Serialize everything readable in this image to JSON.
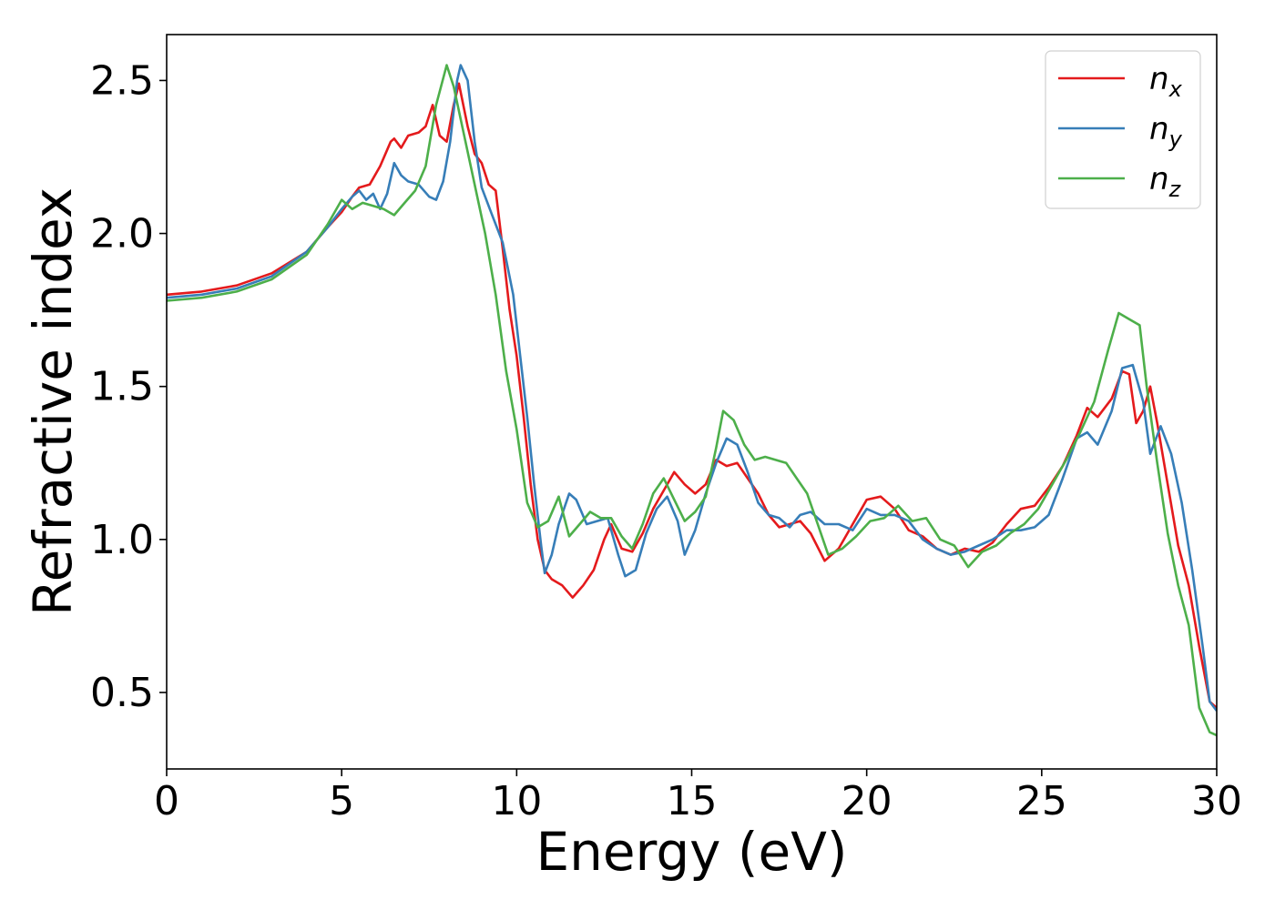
{
  "chart_data": {
    "type": "line",
    "title": "",
    "xlabel": "Energy (eV)",
    "ylabel": "Refractive index",
    "xlim": [
      0,
      30
    ],
    "ylim": [
      0.25,
      2.65
    ],
    "xticks": [
      0,
      5,
      10,
      15,
      20,
      25,
      30
    ],
    "xtick_labels": [
      "0",
      "5",
      "10",
      "15",
      "20",
      "25",
      "30"
    ],
    "yticks": [
      0.5,
      1.0,
      1.5,
      2.0,
      2.5
    ],
    "ytick_labels": [
      "0.5",
      "1.0",
      "1.5",
      "2.0",
      "2.5"
    ],
    "grid": false,
    "legend_position": "top-right",
    "series": [
      {
        "name": "n",
        "subscript": "x",
        "color": "#e41a1c",
        "points": [
          [
            0,
            1.8
          ],
          [
            1,
            1.81
          ],
          [
            2,
            1.83
          ],
          [
            3,
            1.87
          ],
          [
            4,
            1.94
          ],
          [
            4.6,
            2.02
          ],
          [
            5,
            2.07
          ],
          [
            5.3,
            2.12
          ],
          [
            5.5,
            2.15
          ],
          [
            5.8,
            2.16
          ],
          [
            6.1,
            2.22
          ],
          [
            6.4,
            2.3
          ],
          [
            6.5,
            2.31
          ],
          [
            6.7,
            2.28
          ],
          [
            6.9,
            2.32
          ],
          [
            7.2,
            2.33
          ],
          [
            7.4,
            2.35
          ],
          [
            7.6,
            2.42
          ],
          [
            7.8,
            2.32
          ],
          [
            8.0,
            2.3
          ],
          [
            8.2,
            2.42
          ],
          [
            8.35,
            2.49
          ],
          [
            8.6,
            2.35
          ],
          [
            8.8,
            2.26
          ],
          [
            9.0,
            2.23
          ],
          [
            9.2,
            2.16
          ],
          [
            9.4,
            2.14
          ],
          [
            9.6,
            1.95
          ],
          [
            9.8,
            1.75
          ],
          [
            10.0,
            1.6
          ],
          [
            10.2,
            1.4
          ],
          [
            10.4,
            1.18
          ],
          [
            10.6,
            1.0
          ],
          [
            10.8,
            0.9
          ],
          [
            11.0,
            0.87
          ],
          [
            11.3,
            0.85
          ],
          [
            11.6,
            0.81
          ],
          [
            11.9,
            0.85
          ],
          [
            12.2,
            0.9
          ],
          [
            12.5,
            1.0
          ],
          [
            12.7,
            1.05
          ],
          [
            13.0,
            0.97
          ],
          [
            13.3,
            0.96
          ],
          [
            13.6,
            1.02
          ],
          [
            13.9,
            1.1
          ],
          [
            14.2,
            1.16
          ],
          [
            14.5,
            1.22
          ],
          [
            14.8,
            1.18
          ],
          [
            15.1,
            1.15
          ],
          [
            15.4,
            1.18
          ],
          [
            15.7,
            1.26
          ],
          [
            16.0,
            1.24
          ],
          [
            16.3,
            1.25
          ],
          [
            16.6,
            1.2
          ],
          [
            16.9,
            1.15
          ],
          [
            17.2,
            1.08
          ],
          [
            17.5,
            1.04
          ],
          [
            17.8,
            1.05
          ],
          [
            18.1,
            1.06
          ],
          [
            18.4,
            1.02
          ],
          [
            18.8,
            0.93
          ],
          [
            19.2,
            0.97
          ],
          [
            19.6,
            1.05
          ],
          [
            20.0,
            1.13
          ],
          [
            20.4,
            1.14
          ],
          [
            20.8,
            1.1
          ],
          [
            21.2,
            1.03
          ],
          [
            21.6,
            1.01
          ],
          [
            22.0,
            0.97
          ],
          [
            22.4,
            0.95
          ],
          [
            22.8,
            0.97
          ],
          [
            23.2,
            0.96
          ],
          [
            23.6,
            0.99
          ],
          [
            24.0,
            1.05
          ],
          [
            24.4,
            1.1
          ],
          [
            24.8,
            1.11
          ],
          [
            25.2,
            1.17
          ],
          [
            25.6,
            1.24
          ],
          [
            26.0,
            1.34
          ],
          [
            26.3,
            1.43
          ],
          [
            26.6,
            1.4
          ],
          [
            27.0,
            1.46
          ],
          [
            27.3,
            1.55
          ],
          [
            27.5,
            1.54
          ],
          [
            27.7,
            1.38
          ],
          [
            27.9,
            1.42
          ],
          [
            28.1,
            1.5
          ],
          [
            28.3,
            1.38
          ],
          [
            28.6,
            1.18
          ],
          [
            28.9,
            0.98
          ],
          [
            29.2,
            0.85
          ],
          [
            29.5,
            0.65
          ],
          [
            29.8,
            0.47
          ],
          [
            30.0,
            0.45
          ]
        ]
      },
      {
        "name": "n",
        "subscript": "y",
        "color": "#377eb8",
        "points": [
          [
            0,
            1.79
          ],
          [
            1,
            1.8
          ],
          [
            2,
            1.82
          ],
          [
            3,
            1.86
          ],
          [
            4,
            1.94
          ],
          [
            4.6,
            2.02
          ],
          [
            5,
            2.08
          ],
          [
            5.3,
            2.12
          ],
          [
            5.5,
            2.14
          ],
          [
            5.7,
            2.11
          ],
          [
            5.9,
            2.13
          ],
          [
            6.1,
            2.08
          ],
          [
            6.3,
            2.13
          ],
          [
            6.5,
            2.23
          ],
          [
            6.7,
            2.19
          ],
          [
            6.9,
            2.17
          ],
          [
            7.2,
            2.16
          ],
          [
            7.5,
            2.12
          ],
          [
            7.7,
            2.11
          ],
          [
            7.9,
            2.17
          ],
          [
            8.1,
            2.3
          ],
          [
            8.3,
            2.5
          ],
          [
            8.4,
            2.55
          ],
          [
            8.6,
            2.5
          ],
          [
            8.8,
            2.3
          ],
          [
            9.0,
            2.15
          ],
          [
            9.3,
            2.06
          ],
          [
            9.6,
            1.97
          ],
          [
            9.9,
            1.8
          ],
          [
            10.1,
            1.6
          ],
          [
            10.3,
            1.4
          ],
          [
            10.5,
            1.18
          ],
          [
            10.7,
            0.98
          ],
          [
            10.8,
            0.89
          ],
          [
            11.0,
            0.95
          ],
          [
            11.2,
            1.05
          ],
          [
            11.5,
            1.15
          ],
          [
            11.7,
            1.13
          ],
          [
            12.0,
            1.05
          ],
          [
            12.3,
            1.06
          ],
          [
            12.6,
            1.07
          ],
          [
            12.9,
            0.95
          ],
          [
            13.1,
            0.88
          ],
          [
            13.4,
            0.9
          ],
          [
            13.7,
            1.02
          ],
          [
            14.0,
            1.1
          ],
          [
            14.3,
            1.14
          ],
          [
            14.6,
            1.06
          ],
          [
            14.8,
            0.95
          ],
          [
            15.1,
            1.03
          ],
          [
            15.4,
            1.15
          ],
          [
            15.7,
            1.25
          ],
          [
            16.0,
            1.33
          ],
          [
            16.3,
            1.31
          ],
          [
            16.6,
            1.22
          ],
          [
            16.9,
            1.12
          ],
          [
            17.2,
            1.08
          ],
          [
            17.5,
            1.07
          ],
          [
            17.8,
            1.04
          ],
          [
            18.1,
            1.08
          ],
          [
            18.4,
            1.09
          ],
          [
            18.8,
            1.05
          ],
          [
            19.2,
            1.05
          ],
          [
            19.6,
            1.03
          ],
          [
            20.0,
            1.1
          ],
          [
            20.4,
            1.08
          ],
          [
            20.8,
            1.08
          ],
          [
            21.2,
            1.06
          ],
          [
            21.6,
            1.0
          ],
          [
            22.0,
            0.97
          ],
          [
            22.4,
            0.95
          ],
          [
            22.8,
            0.96
          ],
          [
            23.2,
            0.98
          ],
          [
            23.6,
            1.0
          ],
          [
            24.0,
            1.03
          ],
          [
            24.4,
            1.03
          ],
          [
            24.8,
            1.04
          ],
          [
            25.2,
            1.08
          ],
          [
            25.6,
            1.2
          ],
          [
            26.0,
            1.33
          ],
          [
            26.3,
            1.35
          ],
          [
            26.6,
            1.31
          ],
          [
            27.0,
            1.42
          ],
          [
            27.3,
            1.56
          ],
          [
            27.6,
            1.57
          ],
          [
            27.9,
            1.45
          ],
          [
            28.1,
            1.28
          ],
          [
            28.4,
            1.37
          ],
          [
            28.7,
            1.28
          ],
          [
            29.0,
            1.12
          ],
          [
            29.3,
            0.9
          ],
          [
            29.6,
            0.65
          ],
          [
            29.8,
            0.47
          ],
          [
            30.0,
            0.44
          ]
        ]
      },
      {
        "name": "n",
        "subscript": "z",
        "color": "#4daf4a",
        "points": [
          [
            0,
            1.78
          ],
          [
            1,
            1.79
          ],
          [
            2,
            1.81
          ],
          [
            3,
            1.85
          ],
          [
            4,
            1.93
          ],
          [
            4.6,
            2.03
          ],
          [
            5,
            2.11
          ],
          [
            5.3,
            2.08
          ],
          [
            5.6,
            2.1
          ],
          [
            5.9,
            2.09
          ],
          [
            6.2,
            2.08
          ],
          [
            6.5,
            2.06
          ],
          [
            6.8,
            2.1
          ],
          [
            7.1,
            2.14
          ],
          [
            7.4,
            2.22
          ],
          [
            7.7,
            2.42
          ],
          [
            8.0,
            2.55
          ],
          [
            8.2,
            2.48
          ],
          [
            8.5,
            2.32
          ],
          [
            8.8,
            2.16
          ],
          [
            9.1,
            2.0
          ],
          [
            9.4,
            1.8
          ],
          [
            9.7,
            1.55
          ],
          [
            10.0,
            1.36
          ],
          [
            10.3,
            1.12
          ],
          [
            10.6,
            1.04
          ],
          [
            10.9,
            1.06
          ],
          [
            11.2,
            1.14
          ],
          [
            11.5,
            1.01
          ],
          [
            11.8,
            1.05
          ],
          [
            12.1,
            1.09
          ],
          [
            12.4,
            1.07
          ],
          [
            12.7,
            1.07
          ],
          [
            13.0,
            1.01
          ],
          [
            13.3,
            0.97
          ],
          [
            13.6,
            1.05
          ],
          [
            13.9,
            1.15
          ],
          [
            14.2,
            1.2
          ],
          [
            14.5,
            1.13
          ],
          [
            14.8,
            1.06
          ],
          [
            15.1,
            1.09
          ],
          [
            15.4,
            1.14
          ],
          [
            15.7,
            1.3
          ],
          [
            15.9,
            1.42
          ],
          [
            16.2,
            1.39
          ],
          [
            16.5,
            1.31
          ],
          [
            16.8,
            1.26
          ],
          [
            17.1,
            1.27
          ],
          [
            17.4,
            1.26
          ],
          [
            17.7,
            1.25
          ],
          [
            18.0,
            1.2
          ],
          [
            18.3,
            1.15
          ],
          [
            18.6,
            1.05
          ],
          [
            18.9,
            0.95
          ],
          [
            19.3,
            0.97
          ],
          [
            19.7,
            1.01
          ],
          [
            20.1,
            1.06
          ],
          [
            20.5,
            1.07
          ],
          [
            20.9,
            1.11
          ],
          [
            21.3,
            1.06
          ],
          [
            21.7,
            1.07
          ],
          [
            22.1,
            1.0
          ],
          [
            22.5,
            0.98
          ],
          [
            22.9,
            0.91
          ],
          [
            23.3,
            0.96
          ],
          [
            23.7,
            0.98
          ],
          [
            24.1,
            1.02
          ],
          [
            24.5,
            1.05
          ],
          [
            24.9,
            1.1
          ],
          [
            25.3,
            1.18
          ],
          [
            25.7,
            1.26
          ],
          [
            26.1,
            1.35
          ],
          [
            26.5,
            1.45
          ],
          [
            26.9,
            1.62
          ],
          [
            27.2,
            1.74
          ],
          [
            27.5,
            1.72
          ],
          [
            27.8,
            1.7
          ],
          [
            28.0,
            1.5
          ],
          [
            28.3,
            1.25
          ],
          [
            28.6,
            1.02
          ],
          [
            28.9,
            0.85
          ],
          [
            29.2,
            0.72
          ],
          [
            29.5,
            0.45
          ],
          [
            29.8,
            0.37
          ],
          [
            30.0,
            0.36
          ]
        ]
      }
    ]
  }
}
